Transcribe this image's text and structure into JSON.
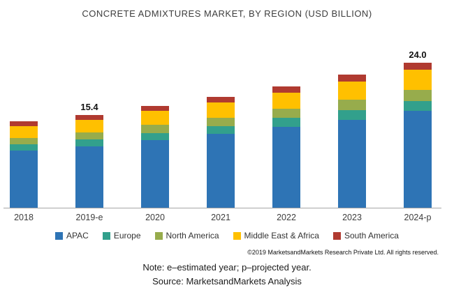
{
  "chart_data": {
    "type": "bar",
    "stacked": true,
    "title": "CONCRETE ADMIXTURES MARKET, BY REGION (USD BILLION)",
    "categories": [
      "2018",
      "2019-e",
      "2020",
      "2021",
      "2022",
      "2023",
      "2024-p"
    ],
    "series": [
      {
        "name": "APAC",
        "color": "#2e74b5",
        "values": [
          9.5,
          10.2,
          11.2,
          12.2,
          13.4,
          14.6,
          16.0
        ]
      },
      {
        "name": "Europe",
        "color": "#32a08c",
        "values": [
          1.0,
          1.1,
          1.2,
          1.3,
          1.5,
          1.6,
          1.7
        ]
      },
      {
        "name": "North America",
        "color": "#97ac4c",
        "values": [
          1.1,
          1.2,
          1.3,
          1.4,
          1.5,
          1.7,
          1.8
        ]
      },
      {
        "name": "Middle East & Africa",
        "color": "#ffc000",
        "values": [
          1.9,
          2.1,
          2.3,
          2.5,
          2.7,
          3.0,
          3.3
        ]
      },
      {
        "name": "South America",
        "color": "#b03a30",
        "values": [
          0.8,
          0.8,
          0.8,
          1.0,
          1.0,
          1.1,
          1.2
        ]
      }
    ],
    "totals": [
      14.3,
      15.4,
      16.8,
      18.4,
      20.1,
      22.0,
      24.0
    ],
    "bar_labels": [
      "",
      "15.4",
      "",
      "",
      "",
      "",
      "24.0"
    ],
    "xlabel": "",
    "ylabel": "",
    "axis_range": [
      0,
      26
    ],
    "grid": false,
    "legend_position": "bottom"
  },
  "footer": {
    "copyright": "©2019 MarketsandMarkets  Research Private Ltd. All rights reserved.",
    "note": "Note: e–estimated year; p–projected year.",
    "source": "Source: MarketsandMarkets Analysis"
  }
}
